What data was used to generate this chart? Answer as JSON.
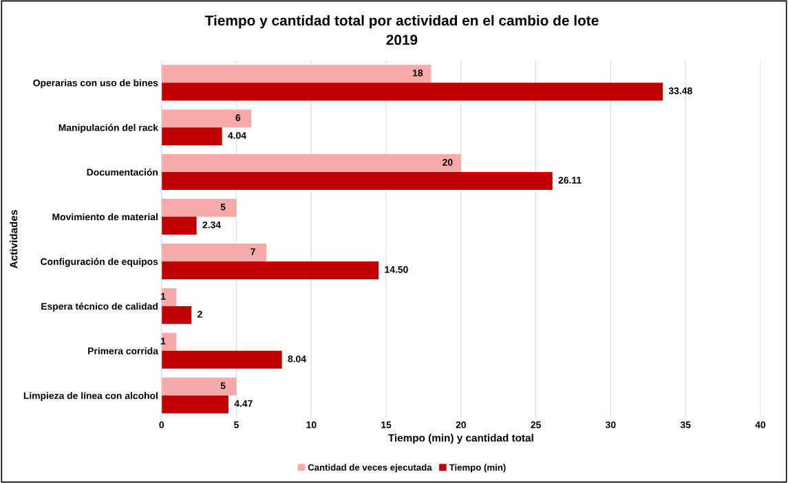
{
  "chart_data": {
    "type": "bar",
    "orientation": "horizontal",
    "title": "Tiempo y cantidad total por actividad en el cambio de lote",
    "subtitle": "2019",
    "xlabel": "Tiempo (min) y cantidad total",
    "ylabel": "Actividades",
    "categories": [
      "Operarias con uso de bines",
      "Manipulación del rack",
      "Documentación",
      "Movimiento de material",
      "Configuración de equipos",
      "Espera técnico de calidad",
      "Primera corrida",
      "Limpieza de línea con alcohol"
    ],
    "series": [
      {
        "name": "Cantidad de veces ejecutada",
        "color": "#f8a9a9",
        "values": [
          18,
          6,
          20,
          5,
          7,
          1,
          1,
          5
        ],
        "value_labels": [
          "18",
          "6",
          "20",
          "5",
          "7",
          "1",
          "1",
          "5"
        ]
      },
      {
        "name": "Tiempo (min)",
        "color": "#c00000",
        "values": [
          33.48,
          4.04,
          26.11,
          2.34,
          14.5,
          2,
          8.04,
          4.47
        ],
        "value_labels": [
          "33.48",
          "4.04",
          "26.11",
          "2.34",
          "14.50",
          "2",
          "8.04",
          "4.47"
        ]
      }
    ],
    "xlim": [
      0,
      40
    ],
    "xticks": [
      0,
      5,
      10,
      15,
      20,
      25,
      30,
      35,
      40
    ],
    "grid": "x",
    "legend": "bottom"
  }
}
